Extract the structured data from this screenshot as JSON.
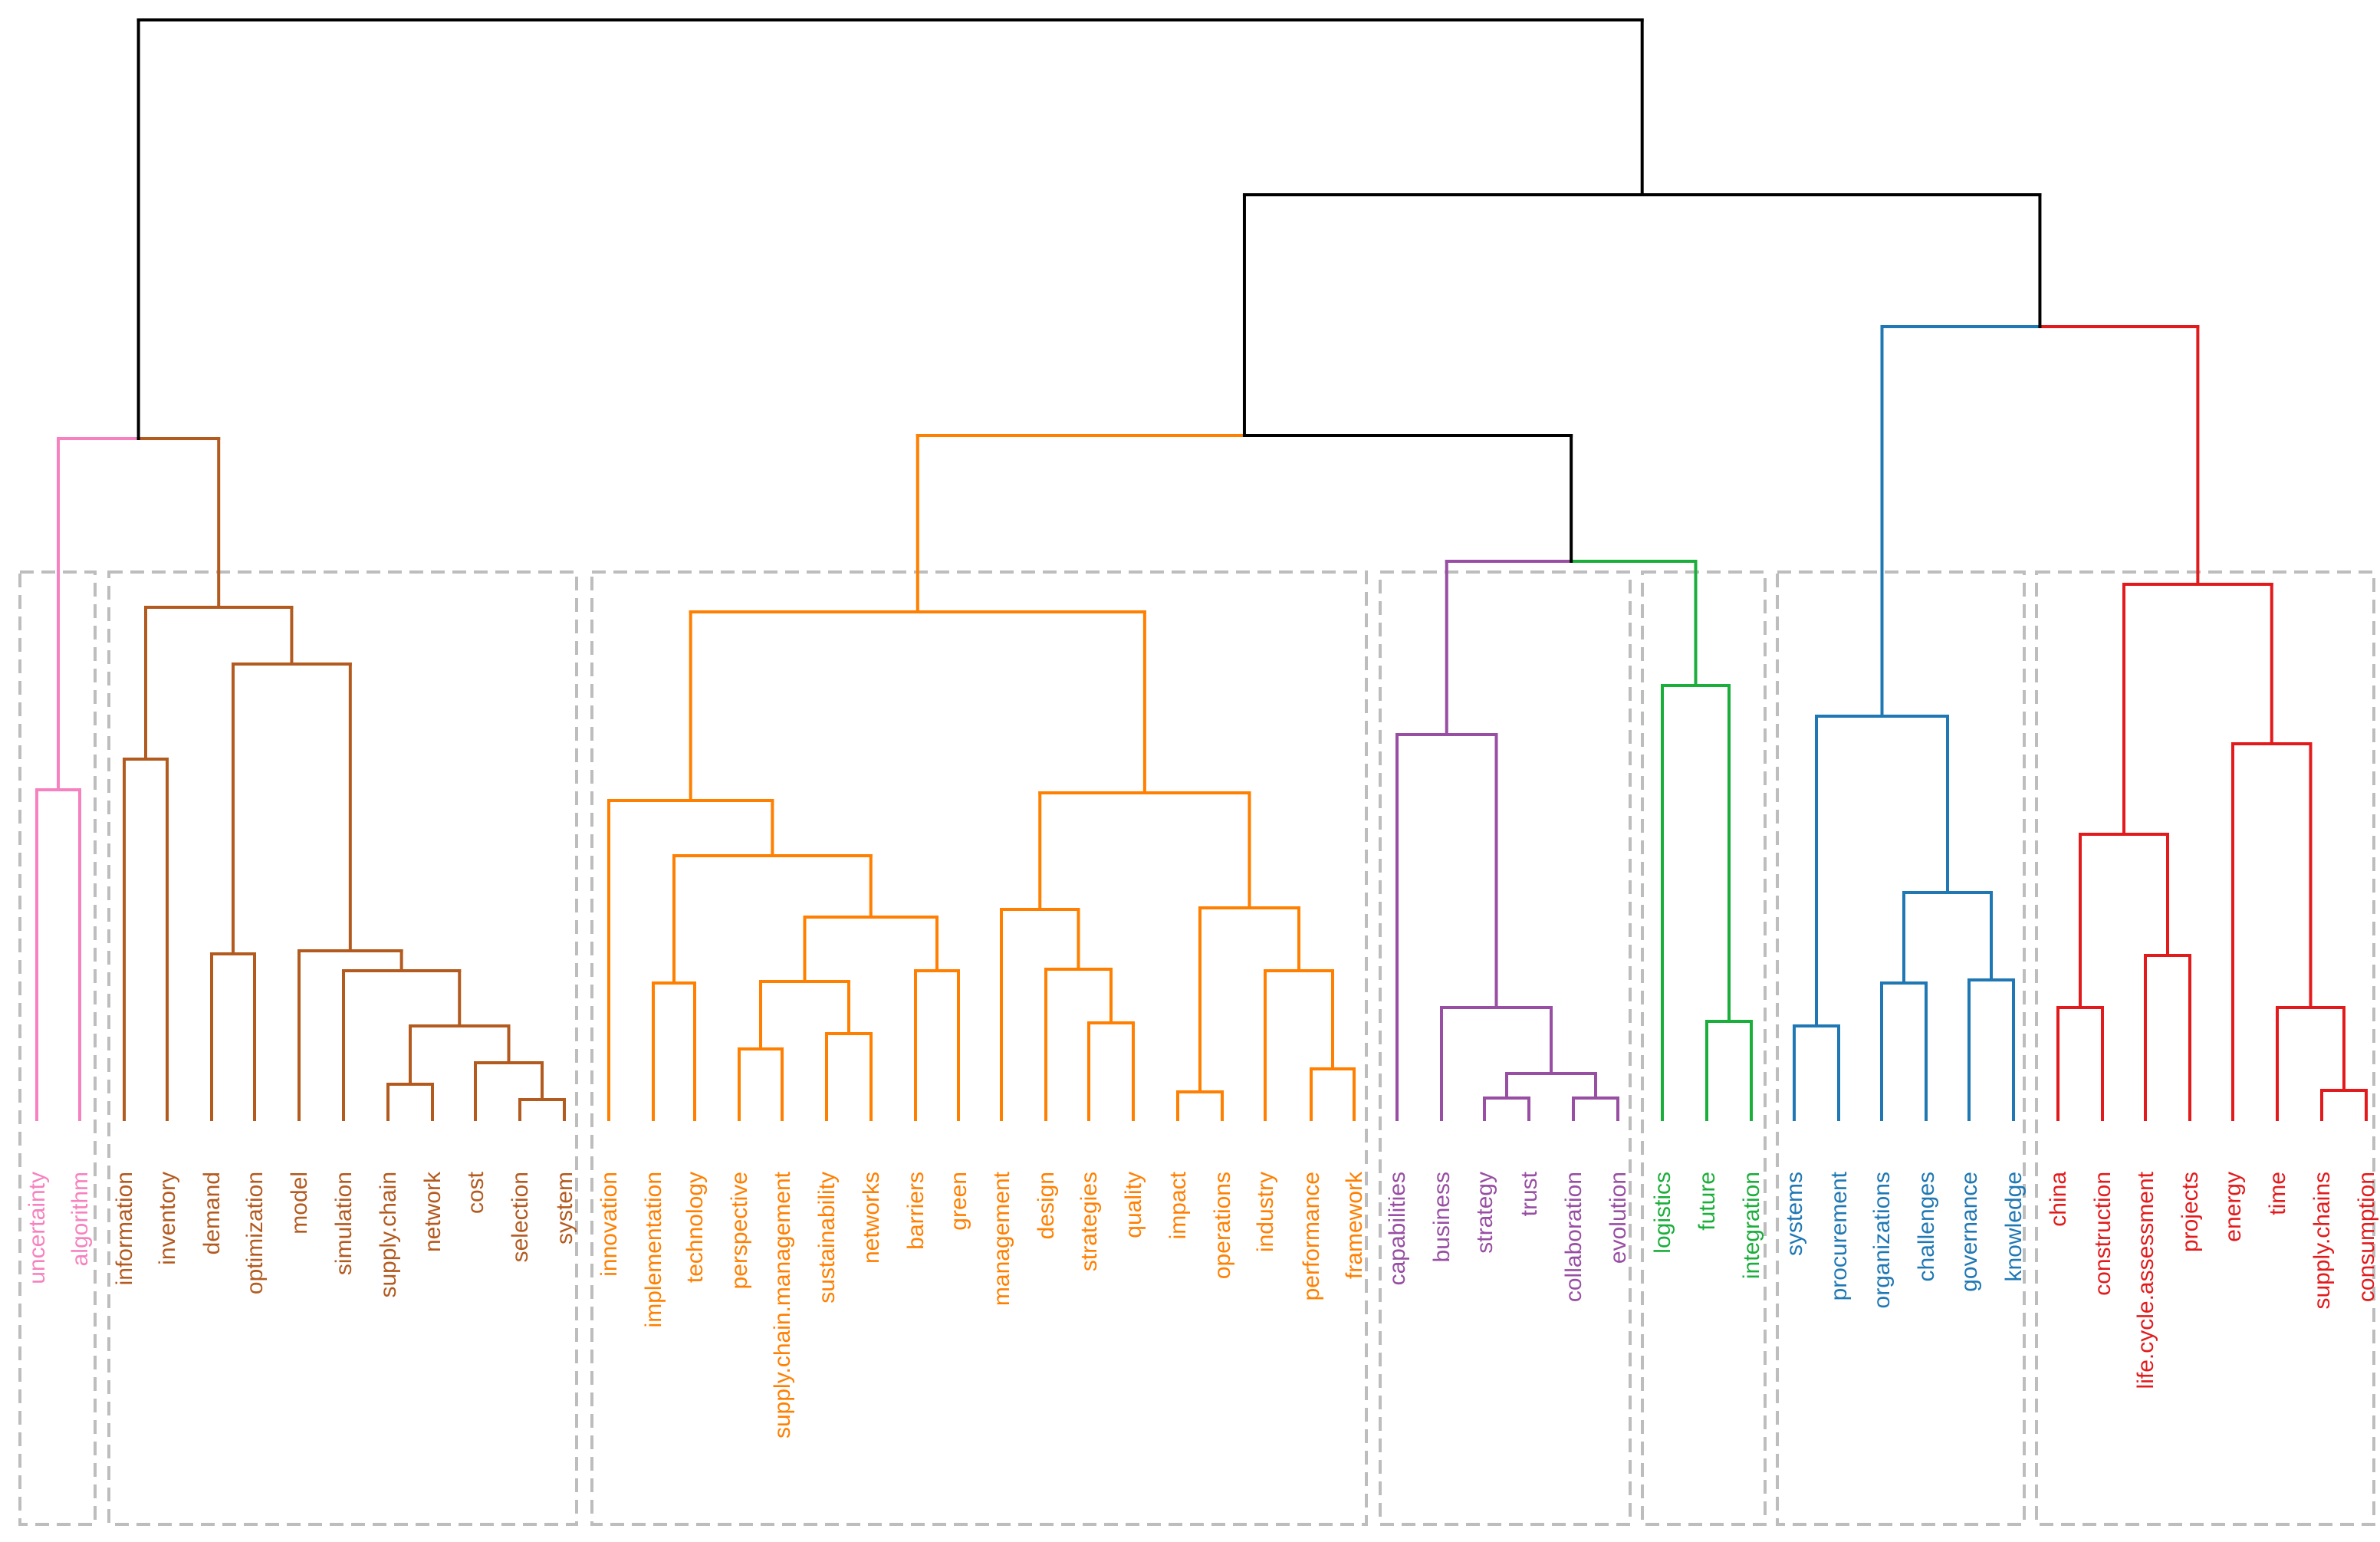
{
  "chart_data": {
    "type": "dendrogram",
    "title": "",
    "colors": {
      "root": "#000000",
      "pink": "#F781BF",
      "brown": "#B35A1F",
      "orange": "#FF7F00",
      "purple": "#984EA3",
      "green": "#1AAE3A",
      "blue": "#1F78B4",
      "red": "#E31A1C",
      "box": "#BDBDBD"
    },
    "clusters": [
      {
        "name": "cluster-1",
        "color": "pink",
        "leaves": [
          "uncertainty",
          "algorithm"
        ]
      },
      {
        "name": "cluster-2",
        "color": "brown",
        "leaves": [
          "information",
          "inventory",
          "demand",
          "optimization",
          "model",
          "simulation",
          "supply.chain",
          "network",
          "cost",
          "selection",
          "system"
        ]
      },
      {
        "name": "cluster-3",
        "color": "orange",
        "leaves": [
          "innovation",
          "implementation",
          "technology",
          "perspective",
          "supply.chain.management",
          "sustainability",
          "networks",
          "barriers",
          "green",
          "management",
          "design",
          "strategies",
          "quality",
          "impact",
          "operations",
          "industry",
          "performance",
          "framework"
        ]
      },
      {
        "name": "cluster-4",
        "color": "purple",
        "leaves": [
          "capabilities",
          "business",
          "strategy",
          "trust",
          "collaboration",
          "evolution"
        ]
      },
      {
        "name": "cluster-5",
        "color": "green",
        "leaves": [
          "logistics",
          "future",
          "integration"
        ]
      },
      {
        "name": "cluster-6",
        "color": "blue",
        "leaves": [
          "systems",
          "procurement",
          "organizations",
          "challenges",
          "governance",
          "knowledge"
        ]
      },
      {
        "name": "cluster-7",
        "color": "red",
        "leaves": [
          "china",
          "construction",
          "life.cycle.assessment",
          "projects",
          "energy",
          "time",
          "supply.chains",
          "consumption"
        ]
      }
    ]
  }
}
